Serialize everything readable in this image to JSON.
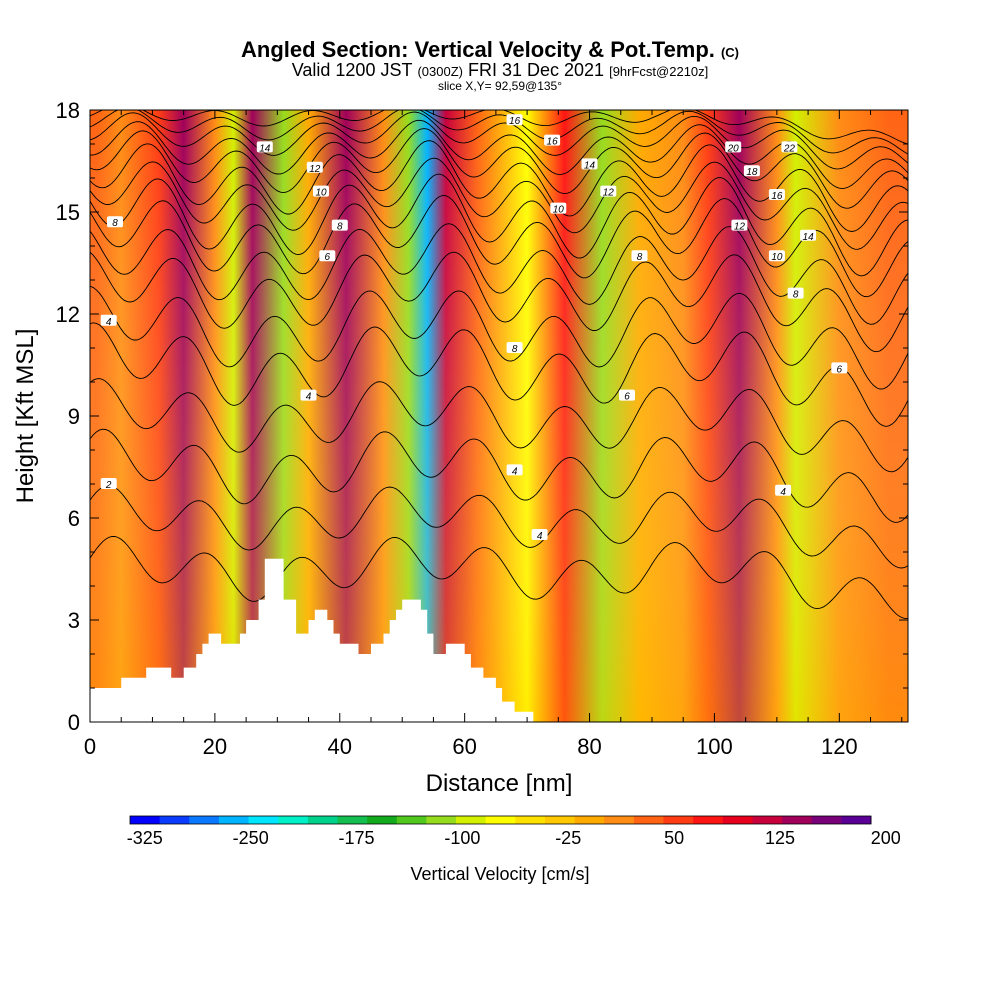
{
  "title": {
    "main": "Angled Section: Vertical Velocity & Pot.Temp.",
    "main_unit": "(C)",
    "valid_prefix": "Valid 1200 JST",
    "valid_utc": "(0300Z)",
    "valid_date": "FRI 31 Dec 2021",
    "forecast": "[9hrFcst@2210z]",
    "slice": "slice X,Y= 92,59@135°"
  },
  "chart_data": {
    "type": "heatmap",
    "xlabel": "Distance [nm]",
    "ylabel": "Height [Kft MSL]",
    "xlim": [
      0,
      131
    ],
    "ylim": [
      0,
      18
    ],
    "x_ticks": [
      "0",
      "20",
      "40",
      "60",
      "80",
      "100",
      "120"
    ],
    "x_tick_values": [
      0,
      20,
      40,
      60,
      80,
      100,
      120
    ],
    "y_ticks": [
      "0",
      "3",
      "6",
      "9",
      "12",
      "15",
      "18"
    ],
    "y_tick_values": [
      0,
      3,
      6,
      9,
      12,
      15,
      18
    ],
    "background_color": "#f5a623",
    "velocity_bands": [
      {
        "x": 1,
        "value": 50
      },
      {
        "x": 5,
        "value": 25
      },
      {
        "x": 11,
        "value": 60
      },
      {
        "x": 15,
        "value": 140
      },
      {
        "x": 20,
        "value": 25
      },
      {
        "x": 23,
        "value": -80
      },
      {
        "x": 26,
        "value": 140
      },
      {
        "x": 31,
        "value": -110
      },
      {
        "x": 35,
        "value": 0
      },
      {
        "x": 41,
        "value": 140
      },
      {
        "x": 47,
        "value": 25
      },
      {
        "x": 51,
        "value": -110
      },
      {
        "x": 54,
        "value": -260
      },
      {
        "x": 57,
        "value": 130
      },
      {
        "x": 62,
        "value": 50
      },
      {
        "x": 70,
        "value": -60
      },
      {
        "x": 76,
        "value": 80
      },
      {
        "x": 82,
        "value": -100
      },
      {
        "x": 88,
        "value": -10
      },
      {
        "x": 95,
        "value": 30
      },
      {
        "x": 99,
        "value": 70
      },
      {
        "x": 104,
        "value": 150
      },
      {
        "x": 110,
        "value": 30
      },
      {
        "x": 113,
        "value": -80
      },
      {
        "x": 120,
        "value": 30
      },
      {
        "x": 128,
        "value": 40
      }
    ],
    "terrain": [
      {
        "x": 0,
        "height": 1.0
      },
      {
        "x": 5,
        "height": 1.0
      },
      {
        "x": 5,
        "height": 1.3
      },
      {
        "x": 9,
        "height": 1.3
      },
      {
        "x": 9,
        "height": 1.6
      },
      {
        "x": 13,
        "height": 1.6
      },
      {
        "x": 13,
        "height": 1.3
      },
      {
        "x": 15,
        "height": 1.3
      },
      {
        "x": 15,
        "height": 1.6
      },
      {
        "x": 17,
        "height": 1.6
      },
      {
        "x": 17,
        "height": 2.0
      },
      {
        "x": 18,
        "height": 2.0
      },
      {
        "x": 18,
        "height": 2.3
      },
      {
        "x": 19,
        "height": 2.3
      },
      {
        "x": 19,
        "height": 2.6
      },
      {
        "x": 21,
        "height": 2.6
      },
      {
        "x": 21,
        "height": 2.3
      },
      {
        "x": 24,
        "height": 2.3
      },
      {
        "x": 24,
        "height": 2.6
      },
      {
        "x": 25,
        "height": 2.6
      },
      {
        "x": 25,
        "height": 3.0
      },
      {
        "x": 27,
        "height": 3.0
      },
      {
        "x": 27,
        "height": 3.6
      },
      {
        "x": 28,
        "height": 3.6
      },
      {
        "x": 28,
        "height": 4.8
      },
      {
        "x": 31,
        "height": 4.8
      },
      {
        "x": 31,
        "height": 3.6
      },
      {
        "x": 33,
        "height": 3.6
      },
      {
        "x": 33,
        "height": 2.6
      },
      {
        "x": 35,
        "height": 2.6
      },
      {
        "x": 35,
        "height": 3.0
      },
      {
        "x": 36,
        "height": 3.0
      },
      {
        "x": 36,
        "height": 3.3
      },
      {
        "x": 38,
        "height": 3.3
      },
      {
        "x": 38,
        "height": 3.0
      },
      {
        "x": 39,
        "height": 3.0
      },
      {
        "x": 39,
        "height": 2.6
      },
      {
        "x": 40,
        "height": 2.6
      },
      {
        "x": 40,
        "height": 2.3
      },
      {
        "x": 43,
        "height": 2.3
      },
      {
        "x": 43,
        "height": 2.0
      },
      {
        "x": 45,
        "height": 2.0
      },
      {
        "x": 45,
        "height": 2.3
      },
      {
        "x": 47,
        "height": 2.3
      },
      {
        "x": 47,
        "height": 2.6
      },
      {
        "x": 48,
        "height": 2.6
      },
      {
        "x": 48,
        "height": 3.0
      },
      {
        "x": 49,
        "height": 3.0
      },
      {
        "x": 49,
        "height": 3.3
      },
      {
        "x": 50,
        "height": 3.3
      },
      {
        "x": 50,
        "height": 3.6
      },
      {
        "x": 53,
        "height": 3.6
      },
      {
        "x": 53,
        "height": 3.3
      },
      {
        "x": 54,
        "height": 3.3
      },
      {
        "x": 54,
        "height": 2.6
      },
      {
        "x": 55,
        "height": 2.6
      },
      {
        "x": 55,
        "height": 2.0
      },
      {
        "x": 57,
        "height": 2.0
      },
      {
        "x": 57,
        "height": 2.3
      },
      {
        "x": 60,
        "height": 2.3
      },
      {
        "x": 60,
        "height": 2.0
      },
      {
        "x": 61,
        "height": 2.0
      },
      {
        "x": 61,
        "height": 1.6
      },
      {
        "x": 63,
        "height": 1.6
      },
      {
        "x": 63,
        "height": 1.3
      },
      {
        "x": 65,
        "height": 1.3
      },
      {
        "x": 65,
        "height": 1.0
      },
      {
        "x": 66,
        "height": 1.0
      },
      {
        "x": 66,
        "height": 0.6
      },
      {
        "x": 68,
        "height": 0.6
      },
      {
        "x": 68,
        "height": 0.3
      },
      {
        "x": 71,
        "height": 0.3
      },
      {
        "x": 71,
        "height": 0.0
      },
      {
        "x": 131,
        "height": 0.0
      }
    ],
    "isotherms": [
      {
        "label": "2",
        "base": 4.5,
        "amp": 0.6
      },
      {
        "label": "",
        "base": 6.0,
        "amp": 0.6
      },
      {
        "label": "4",
        "base": 7.5,
        "amp": 0.7
      },
      {
        "label": "",
        "base": 9.0,
        "amp": 0.7
      },
      {
        "label": "6",
        "base": 10.5,
        "amp": 0.8
      },
      {
        "label": "",
        "base": 11.6,
        "amp": 0.8
      },
      {
        "label": "8",
        "base": 12.7,
        "amp": 0.8
      },
      {
        "label": "",
        "base": 13.5,
        "amp": 0.8
      },
      {
        "label": "10",
        "base": 14.3,
        "amp": 0.8
      },
      {
        "label": "",
        "base": 14.9,
        "amp": 0.8
      },
      {
        "label": "12",
        "base": 15.5,
        "amp": 0.7
      },
      {
        "label": "",
        "base": 16.0,
        "amp": 0.7
      },
      {
        "label": "14",
        "base": 16.5,
        "amp": 0.6
      },
      {
        "label": "",
        "base": 16.9,
        "amp": 0.5
      },
      {
        "label": "16",
        "base": 17.3,
        "amp": 0.4
      },
      {
        "label": "",
        "base": 17.6,
        "amp": 0.3
      },
      {
        "label": "18",
        "base": 17.85,
        "amp": 0.2
      }
    ],
    "contour_labels": [
      {
        "text": "14",
        "x": 28,
        "y": 16.9
      },
      {
        "text": "12",
        "x": 36,
        "y": 16.3
      },
      {
        "text": "10",
        "x": 37,
        "y": 15.6
      },
      {
        "text": "8",
        "x": 40,
        "y": 14.6
      },
      {
        "text": "6",
        "x": 38,
        "y": 13.7
      },
      {
        "text": "4",
        "x": 35,
        "y": 9.6
      },
      {
        "text": "8",
        "x": 4,
        "y": 14.7
      },
      {
        "text": "4",
        "x": 3,
        "y": 11.8
      },
      {
        "text": "2",
        "x": 3,
        "y": 7.0
      },
      {
        "text": "16",
        "x": 68,
        "y": 17.7
      },
      {
        "text": "16",
        "x": 74,
        "y": 17.1
      },
      {
        "text": "14",
        "x": 80,
        "y": 16.4
      },
      {
        "text": "12",
        "x": 83,
        "y": 15.6
      },
      {
        "text": "10",
        "x": 75,
        "y": 15.1
      },
      {
        "text": "8",
        "x": 68,
        "y": 11.0
      },
      {
        "text": "4",
        "x": 68,
        "y": 7.4
      },
      {
        "text": "4",
        "x": 72,
        "y": 5.5
      },
      {
        "text": "8",
        "x": 88,
        "y": 13.7
      },
      {
        "text": "6",
        "x": 86,
        "y": 9.6
      },
      {
        "text": "20",
        "x": 103,
        "y": 16.9
      },
      {
        "text": "22",
        "x": 112,
        "y": 16.9
      },
      {
        "text": "18",
        "x": 106,
        "y": 16.2
      },
      {
        "text": "16",
        "x": 110,
        "y": 15.5
      },
      {
        "text": "12",
        "x": 104,
        "y": 14.6
      },
      {
        "text": "14",
        "x": 115,
        "y": 14.3
      },
      {
        "text": "10",
        "x": 110,
        "y": 13.7
      },
      {
        "text": "8",
        "x": 113,
        "y": 12.6
      },
      {
        "text": "6",
        "x": 120,
        "y": 10.4
      },
      {
        "text": "4",
        "x": 111,
        "y": 6.8
      }
    ]
  },
  "colorbar": {
    "title": "Vertical Velocity [cm/s]",
    "colors": [
      "#0000ff",
      "#0a3cff",
      "#0a78ff",
      "#00b4ff",
      "#00e6ff",
      "#00f0c8",
      "#00d28c",
      "#14be50",
      "#14aa1e",
      "#50c81e",
      "#96dc1e",
      "#d2f000",
      "#ffff00",
      "#ffe100",
      "#ffc800",
      "#ffaa00",
      "#ff8c14",
      "#ff6414",
      "#ff3c14",
      "#ff1414",
      "#e6001e",
      "#c8003c",
      "#a0005a",
      "#780078",
      "#5a0096"
    ],
    "labels": [
      "-325",
      "-250",
      "-175",
      "-100",
      "-25",
      "50",
      "125",
      "200"
    ],
    "label_values": [
      -325,
      -250,
      -175,
      -100,
      -25,
      50,
      125,
      200
    ],
    "range": [
      -325,
      200
    ]
  }
}
